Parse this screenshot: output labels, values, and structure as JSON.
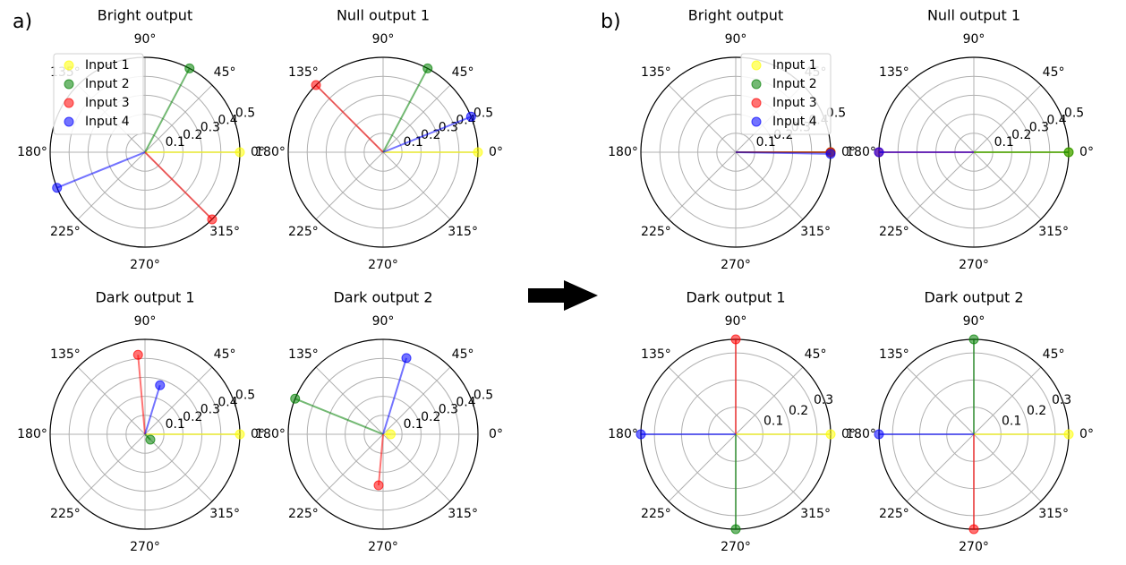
{
  "panel_labels": [
    "a)",
    "b)"
  ],
  "colors": {
    "Input 1": "#ffff00",
    "Input 2": "#008000",
    "Input 3": "#ff0000",
    "Input 4": "#0000ff"
  },
  "chart_data": [
    {
      "type": "polar",
      "panel": "a)",
      "title": "Bright output",
      "angle_ticks": [
        "0°",
        "45°",
        "90°",
        "135°",
        "180°",
        "225°",
        "270°",
        "315°"
      ],
      "radial_ticks": [
        "0.1",
        "0.2",
        "0.3",
        "0.4",
        "0.5"
      ],
      "rmax": 0.5,
      "legend": "top-left",
      "series": [
        {
          "name": "Input 1",
          "angle_deg": 0,
          "r": 0.5
        },
        {
          "name": "Input 2",
          "angle_deg": 62,
          "r": 0.5
        },
        {
          "name": "Input 3",
          "angle_deg": 315,
          "r": 0.5
        },
        {
          "name": "Input 4",
          "angle_deg": 202,
          "r": 0.5
        }
      ]
    },
    {
      "type": "polar",
      "panel": "a)",
      "title": "Null output 1",
      "angle_ticks": [
        "0°",
        "45°",
        "90°",
        "135°",
        "180°",
        "225°",
        "270°",
        "315°"
      ],
      "radial_ticks": [
        "0.1",
        "0.2",
        "0.3",
        "0.4",
        "0.5"
      ],
      "rmax": 0.5,
      "series": [
        {
          "name": "Input 1",
          "angle_deg": 0,
          "r": 0.5
        },
        {
          "name": "Input 2",
          "angle_deg": 62,
          "r": 0.5
        },
        {
          "name": "Input 3",
          "angle_deg": 135,
          "r": 0.5
        },
        {
          "name": "Input 4",
          "angle_deg": 22,
          "r": 0.5
        }
      ]
    },
    {
      "type": "polar",
      "panel": "a)",
      "title": "Dark output 1",
      "angle_ticks": [
        "0°",
        "45°",
        "90°",
        "135°",
        "180°",
        "225°",
        "270°",
        "315°"
      ],
      "radial_ticks": [
        "0.1",
        "0.2",
        "0.3",
        "0.4",
        "0.5"
      ],
      "rmax": 0.5,
      "series": [
        {
          "name": "Input 1",
          "angle_deg": 0,
          "r": 0.5
        },
        {
          "name": "Input 2",
          "angle_deg": 315,
          "r": 0.04
        },
        {
          "name": "Input 3",
          "angle_deg": 95,
          "r": 0.42
        },
        {
          "name": "Input 4",
          "angle_deg": 73,
          "r": 0.27
        }
      ]
    },
    {
      "type": "polar",
      "panel": "a)",
      "title": "Dark output 2",
      "angle_ticks": [
        "0°",
        "45°",
        "90°",
        "135°",
        "180°",
        "225°",
        "270°",
        "315°"
      ],
      "radial_ticks": [
        "0.1",
        "0.2",
        "0.3",
        "0.4",
        "0.5"
      ],
      "rmax": 0.5,
      "series": [
        {
          "name": "Input 1",
          "angle_deg": 0,
          "r": 0.04
        },
        {
          "name": "Input 2",
          "angle_deg": 158,
          "r": 0.5
        },
        {
          "name": "Input 3",
          "angle_deg": 265,
          "r": 0.27
        },
        {
          "name": "Input 4",
          "angle_deg": 73,
          "r": 0.42
        }
      ]
    },
    {
      "type": "polar",
      "panel": "b)",
      "title": "Bright output",
      "angle_ticks": [
        "0°",
        "45°",
        "90°",
        "135°",
        "180°",
        "225°",
        "270°",
        "315°"
      ],
      "radial_ticks": [
        "0.1",
        "0.2",
        "0.3",
        "0.4",
        "0.5"
      ],
      "rmax": 0.5,
      "legend": "top-right",
      "series": [
        {
          "name": "Input 1",
          "angle_deg": 0,
          "r": 0.5
        },
        {
          "name": "Input 2",
          "angle_deg": 0,
          "r": 0.5
        },
        {
          "name": "Input 3",
          "angle_deg": 0,
          "r": 0.5
        },
        {
          "name": "Input 4",
          "angle_deg": 359,
          "r": 0.5
        }
      ]
    },
    {
      "type": "polar",
      "panel": "b)",
      "title": "Null output 1",
      "angle_ticks": [
        "0°",
        "45°",
        "90°",
        "135°",
        "180°",
        "225°",
        "270°",
        "315°"
      ],
      "radial_ticks": [
        "0.1",
        "0.2",
        "0.3",
        "0.4",
        "0.5"
      ],
      "rmax": 0.5,
      "series": [
        {
          "name": "Input 1",
          "angle_deg": 0,
          "r": 0.5
        },
        {
          "name": "Input 2",
          "angle_deg": 0,
          "r": 0.5
        },
        {
          "name": "Input 3",
          "angle_deg": 180,
          "r": 0.5
        },
        {
          "name": "Input 4",
          "angle_deg": 180,
          "r": 0.5
        }
      ]
    },
    {
      "type": "polar",
      "panel": "b)",
      "title": "Dark output 1",
      "angle_ticks": [
        "0°",
        "45°",
        "90°",
        "135°",
        "180°",
        "225°",
        "270°",
        "315°"
      ],
      "radial_ticks": [
        "0.1",
        "0.2",
        "0.3"
      ],
      "rmax": 0.35,
      "series": [
        {
          "name": "Input 1",
          "angle_deg": 0,
          "r": 0.35
        },
        {
          "name": "Input 2",
          "angle_deg": 270,
          "r": 0.35
        },
        {
          "name": "Input 3",
          "angle_deg": 90,
          "r": 0.35
        },
        {
          "name": "Input 4",
          "angle_deg": 180,
          "r": 0.35
        }
      ]
    },
    {
      "type": "polar",
      "panel": "b)",
      "title": "Dark output 2",
      "angle_ticks": [
        "0°",
        "45°",
        "90°",
        "135°",
        "180°",
        "225°",
        "270°",
        "315°"
      ],
      "radial_ticks": [
        "0.1",
        "0.2",
        "0.3"
      ],
      "rmax": 0.35,
      "series": [
        {
          "name": "Input 1",
          "angle_deg": 0,
          "r": 0.35
        },
        {
          "name": "Input 2",
          "angle_deg": 90,
          "r": 0.35
        },
        {
          "name": "Input 3",
          "angle_deg": 270,
          "r": 0.35
        },
        {
          "name": "Input 4",
          "angle_deg": 180,
          "r": 0.35
        }
      ]
    }
  ]
}
